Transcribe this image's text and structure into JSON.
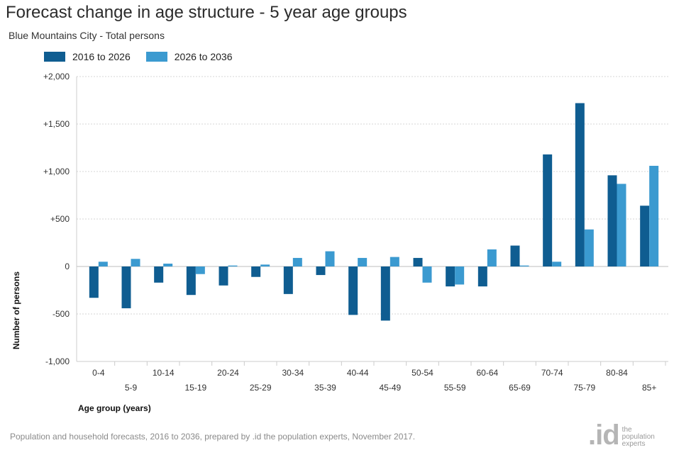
{
  "header": {
    "title": "Forecast change in age structure - 5 year age groups",
    "subtitle": "Blue Mountains City - Total persons"
  },
  "footer": {
    "source": "Population and household forecasts, 2016 to 2036, prepared by .id the population experts, November 2017."
  },
  "logo": {
    "mark": ".id",
    "line1": "the",
    "line2": "population",
    "line3": "experts"
  },
  "chart_data": {
    "type": "bar",
    "title": "Forecast change in age structure - 5 year age groups",
    "subtitle": "Blue Mountains City - Total persons",
    "xlabel": "Age group (years)",
    "ylabel": "Number of persons",
    "ylim": [
      -1000,
      2000
    ],
    "yticks": [
      -1000,
      -500,
      0,
      500,
      1000,
      1500,
      2000
    ],
    "ytick_labels": [
      "-1,000",
      "-500",
      "0",
      "+500",
      "+1,000",
      "+1,500",
      "+2,000"
    ],
    "grid": true,
    "legend_position": "top-left",
    "categories": [
      "0-4",
      "5-9",
      "10-14",
      "15-19",
      "20-24",
      "25-29",
      "30-34",
      "35-39",
      "40-44",
      "45-49",
      "50-54",
      "55-59",
      "60-64",
      "65-69",
      "70-74",
      "75-79",
      "80-84",
      "85+"
    ],
    "series": [
      {
        "name": "2016 to 2026",
        "color": "#0f5d91",
        "values": [
          -330,
          -440,
          -170,
          -300,
          -200,
          -110,
          -290,
          -90,
          -510,
          -570,
          90,
          -210,
          -210,
          220,
          1180,
          1720,
          960,
          640
        ]
      },
      {
        "name": "2026 to 2036",
        "color": "#3b9ad0",
        "values": [
          50,
          80,
          30,
          -80,
          10,
          20,
          90,
          160,
          90,
          100,
          -170,
          -190,
          180,
          10,
          50,
          390,
          870,
          1060
        ]
      }
    ]
  }
}
